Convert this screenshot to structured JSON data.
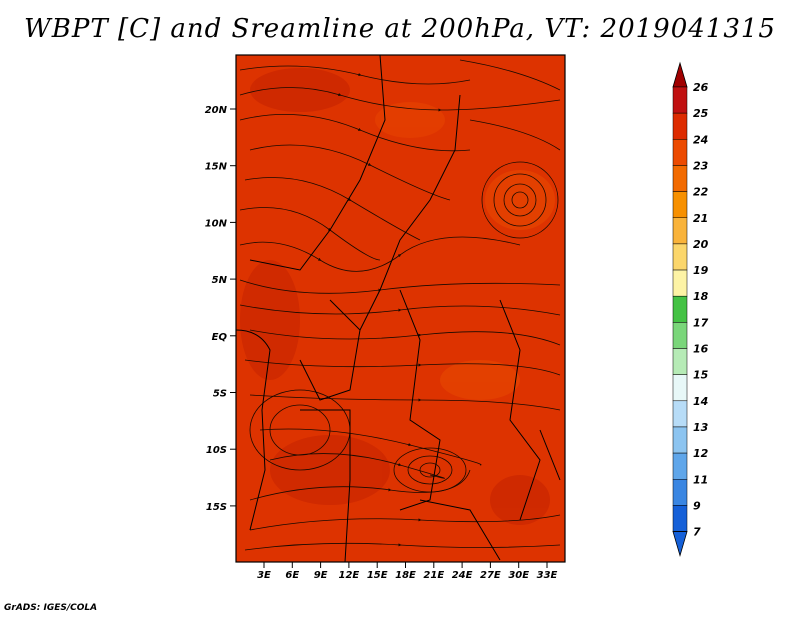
{
  "title": "WBPT [C] and Sreamline at 200hPa, VT: 2019041315",
  "footer": "GrADS: IGES/COLA",
  "map": {
    "lat_labels": [
      "20N",
      "15N",
      "10N",
      "5N",
      "EQ",
      "5S",
      "10S",
      "15S"
    ],
    "lon_labels": [
      "3E",
      "6E",
      "9E",
      "12E",
      "15E",
      "18E",
      "21E",
      "24E",
      "27E",
      "30E",
      "33E"
    ],
    "field_color": "#dd3300",
    "streamline_color": "#1a0a00"
  },
  "colorbar": {
    "labels": [
      "26",
      "25",
      "24",
      "23",
      "22",
      "21",
      "20",
      "19",
      "18",
      "17",
      "16",
      "15",
      "14",
      "13",
      "12",
      "11",
      "9",
      "7"
    ],
    "colors": [
      "#a00000",
      "#c01010",
      "#dd2b00",
      "#ec4a00",
      "#f26a00",
      "#f79000",
      "#f9b33a",
      "#fbd66b",
      "#fdf3a5",
      "#44c244",
      "#7ad67a",
      "#b6ebb6",
      "#e8f8f8",
      "#b7dcf7",
      "#8cc4f0",
      "#5fa6ea",
      "#3a86e2",
      "#1560d8"
    ]
  }
}
